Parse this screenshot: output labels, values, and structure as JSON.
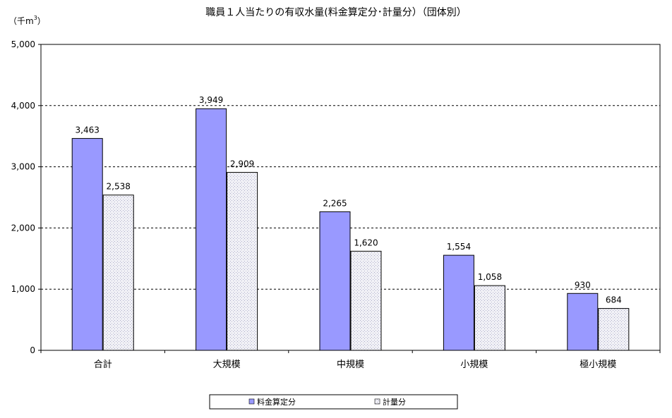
{
  "chart_data": {
    "type": "bar",
    "title": "職員１人当たりの有収水量(料金算定分･計量分）（団体別）",
    "ylabel": "（千m",
    "ylabel_sup": "3",
    "ylabel_close": "）",
    "categories": [
      "合計",
      "大規模",
      "中規模",
      "小規模",
      "極小規模"
    ],
    "series": [
      {
        "name": "料金算定分",
        "values": [
          3463,
          3949,
          2265,
          1554,
          930
        ],
        "labels": [
          "3,463",
          "3,949",
          "2,265",
          "1,554",
          "930"
        ],
        "color": "#9999ff"
      },
      {
        "name": "計量分",
        "values": [
          2538,
          2909,
          1620,
          1058,
          684
        ],
        "labels": [
          "2,538",
          "2,909",
          "1,620",
          "1,058",
          "684"
        ],
        "color": "#dcdcec"
      }
    ],
    "ylim": [
      0,
      5000
    ],
    "yticks": [
      0,
      1000,
      2000,
      3000,
      4000,
      5000
    ],
    "ytick_labels": [
      "0",
      "1,000",
      "2,000",
      "3,000",
      "4,000",
      "5,000"
    ],
    "grid": true,
    "legend_position": "bottom"
  }
}
